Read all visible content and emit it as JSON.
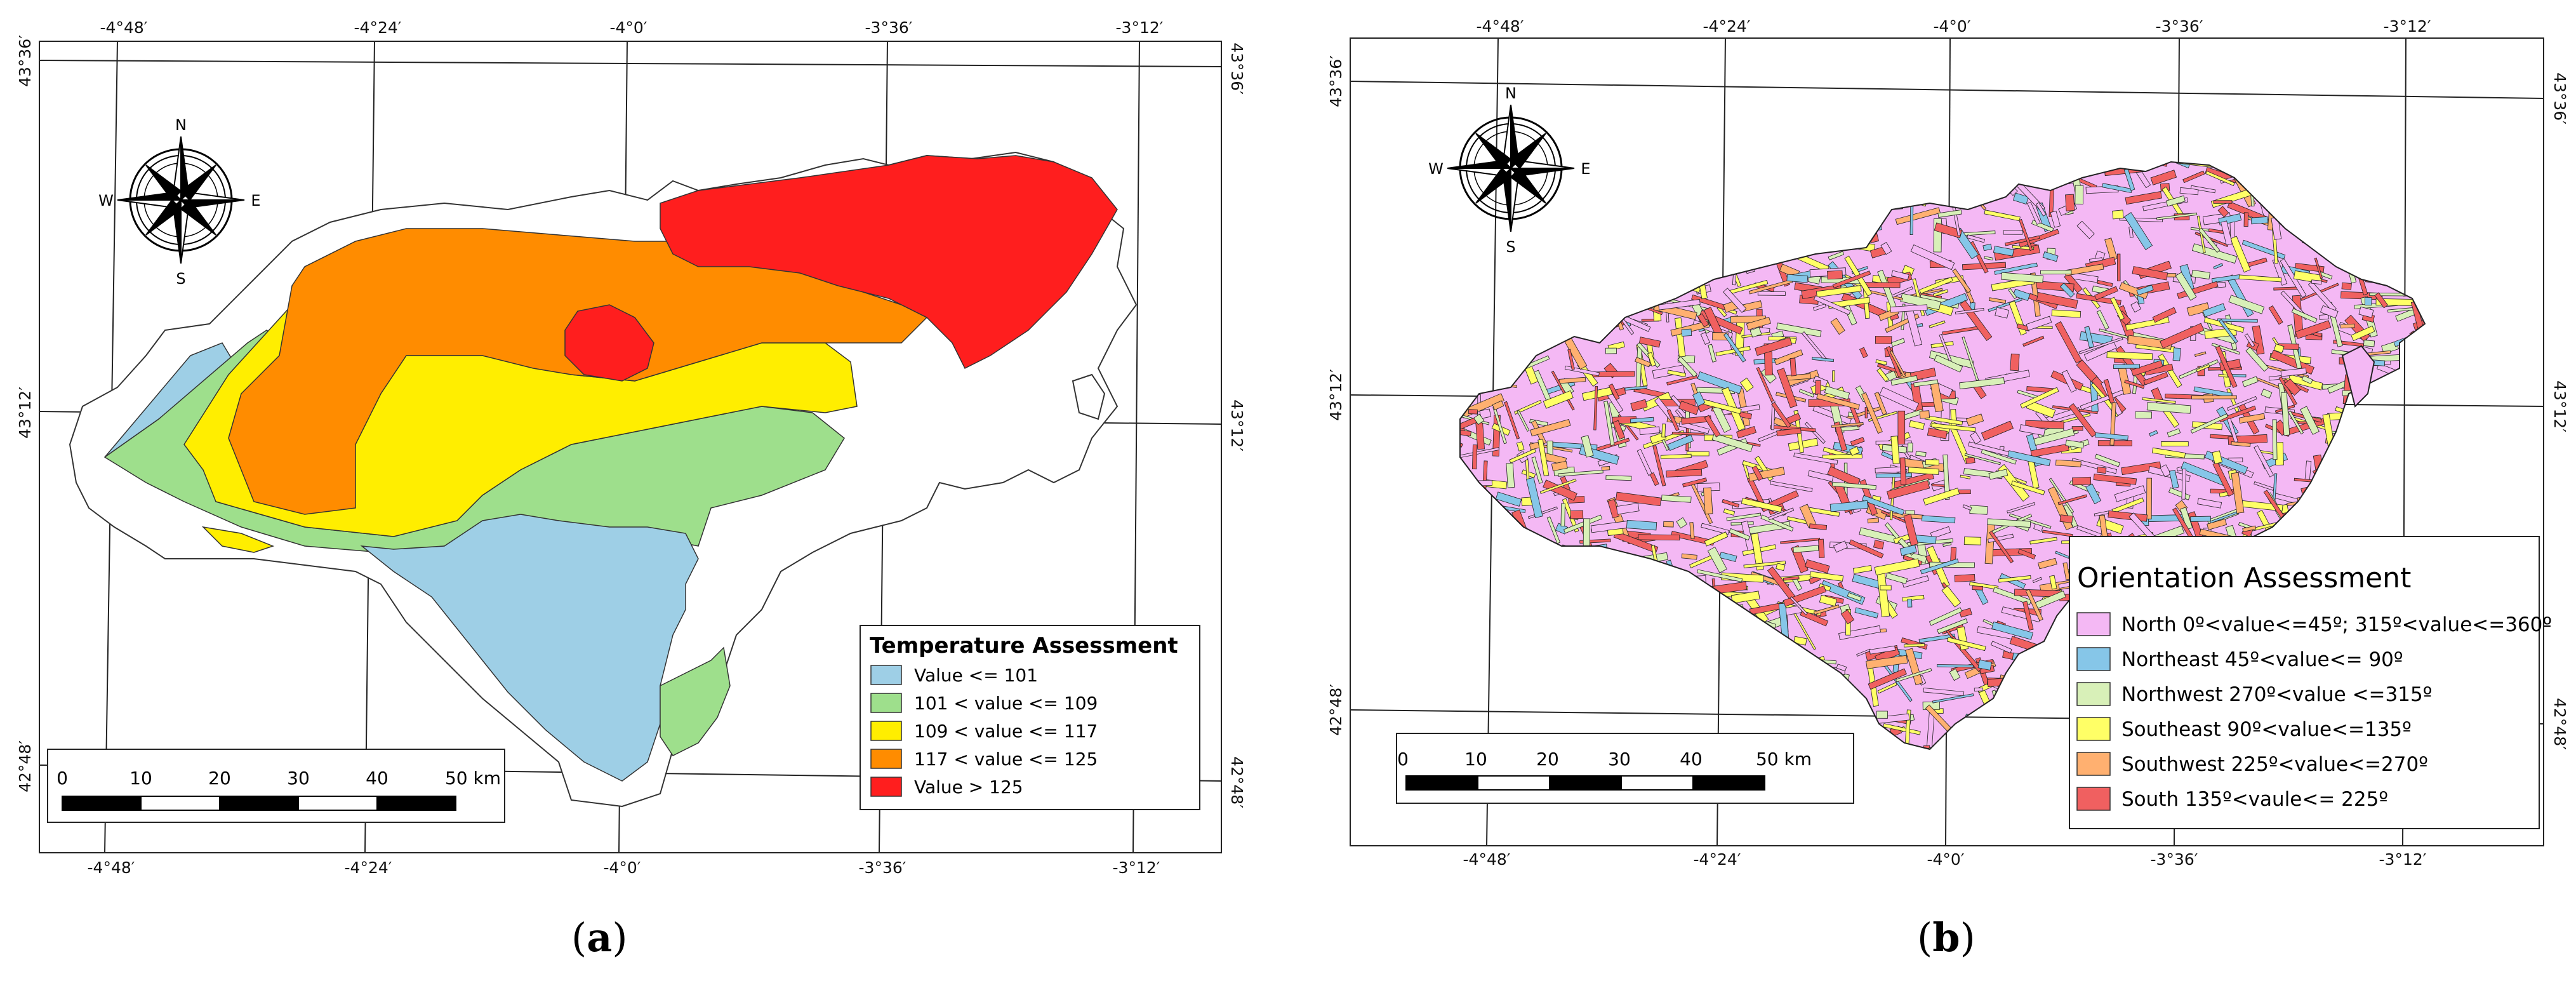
{
  "panel_a": {
    "caption_letter": "a",
    "lon_labels": [
      "-4°48′",
      "-4°24′",
      "-4°0′",
      "-3°36′",
      "-3°12′"
    ],
    "lat_labels": [
      "43°36′",
      "43°12′",
      "42°48′"
    ],
    "compass": {
      "n": "N",
      "s": "S",
      "e": "E",
      "w": "W"
    },
    "scale": {
      "ticks": [
        "0",
        "10",
        "20",
        "30",
        "40",
        "50 km"
      ]
    },
    "legend": {
      "title": "Temperature Assessment",
      "items": [
        {
          "label": "Value <= 101",
          "color": "#9ecfe6"
        },
        {
          "label": "101 < value <= 109",
          "color": "#9edf8c"
        },
        {
          "label": "109 < value <= 117",
          "color": "#ffee00"
        },
        {
          "label": "117 < value <= 125",
          "color": "#ff8c00"
        },
        {
          "label": "Value > 125",
          "color": "#ff1e1e"
        }
      ]
    }
  },
  "panel_b": {
    "caption_letter": "b",
    "lon_labels": [
      "-4°48′",
      "-4°24′",
      "-4°0′",
      "-3°36′",
      "-3°12′"
    ],
    "lat_labels": [
      "43°36′",
      "43°12′",
      "42°48′"
    ],
    "compass": {
      "n": "N",
      "s": "S",
      "e": "E",
      "w": "W"
    },
    "scale": {
      "ticks": [
        "0",
        "10",
        "20",
        "30",
        "40",
        "50 km"
      ]
    },
    "legend": {
      "title": "Orientation Assessment",
      "items": [
        {
          "label": "North 0º<value<=45º; 315º<value<=360º",
          "color": "#f4b8f4"
        },
        {
          "label": "Northeast 45º<value<= 90º",
          "color": "#86c6e8"
        },
        {
          "label": "Northwest 270º<value <=315º",
          "color": "#d8f0b8"
        },
        {
          "label": "Southeast 90º<value<=135º",
          "color": "#ffff66"
        },
        {
          "label": "Southwest 225º<value<=270º",
          "color": "#ffb070"
        },
        {
          "label": "South 135º<vaule<= 225º",
          "color": "#f06060"
        }
      ]
    }
  }
}
